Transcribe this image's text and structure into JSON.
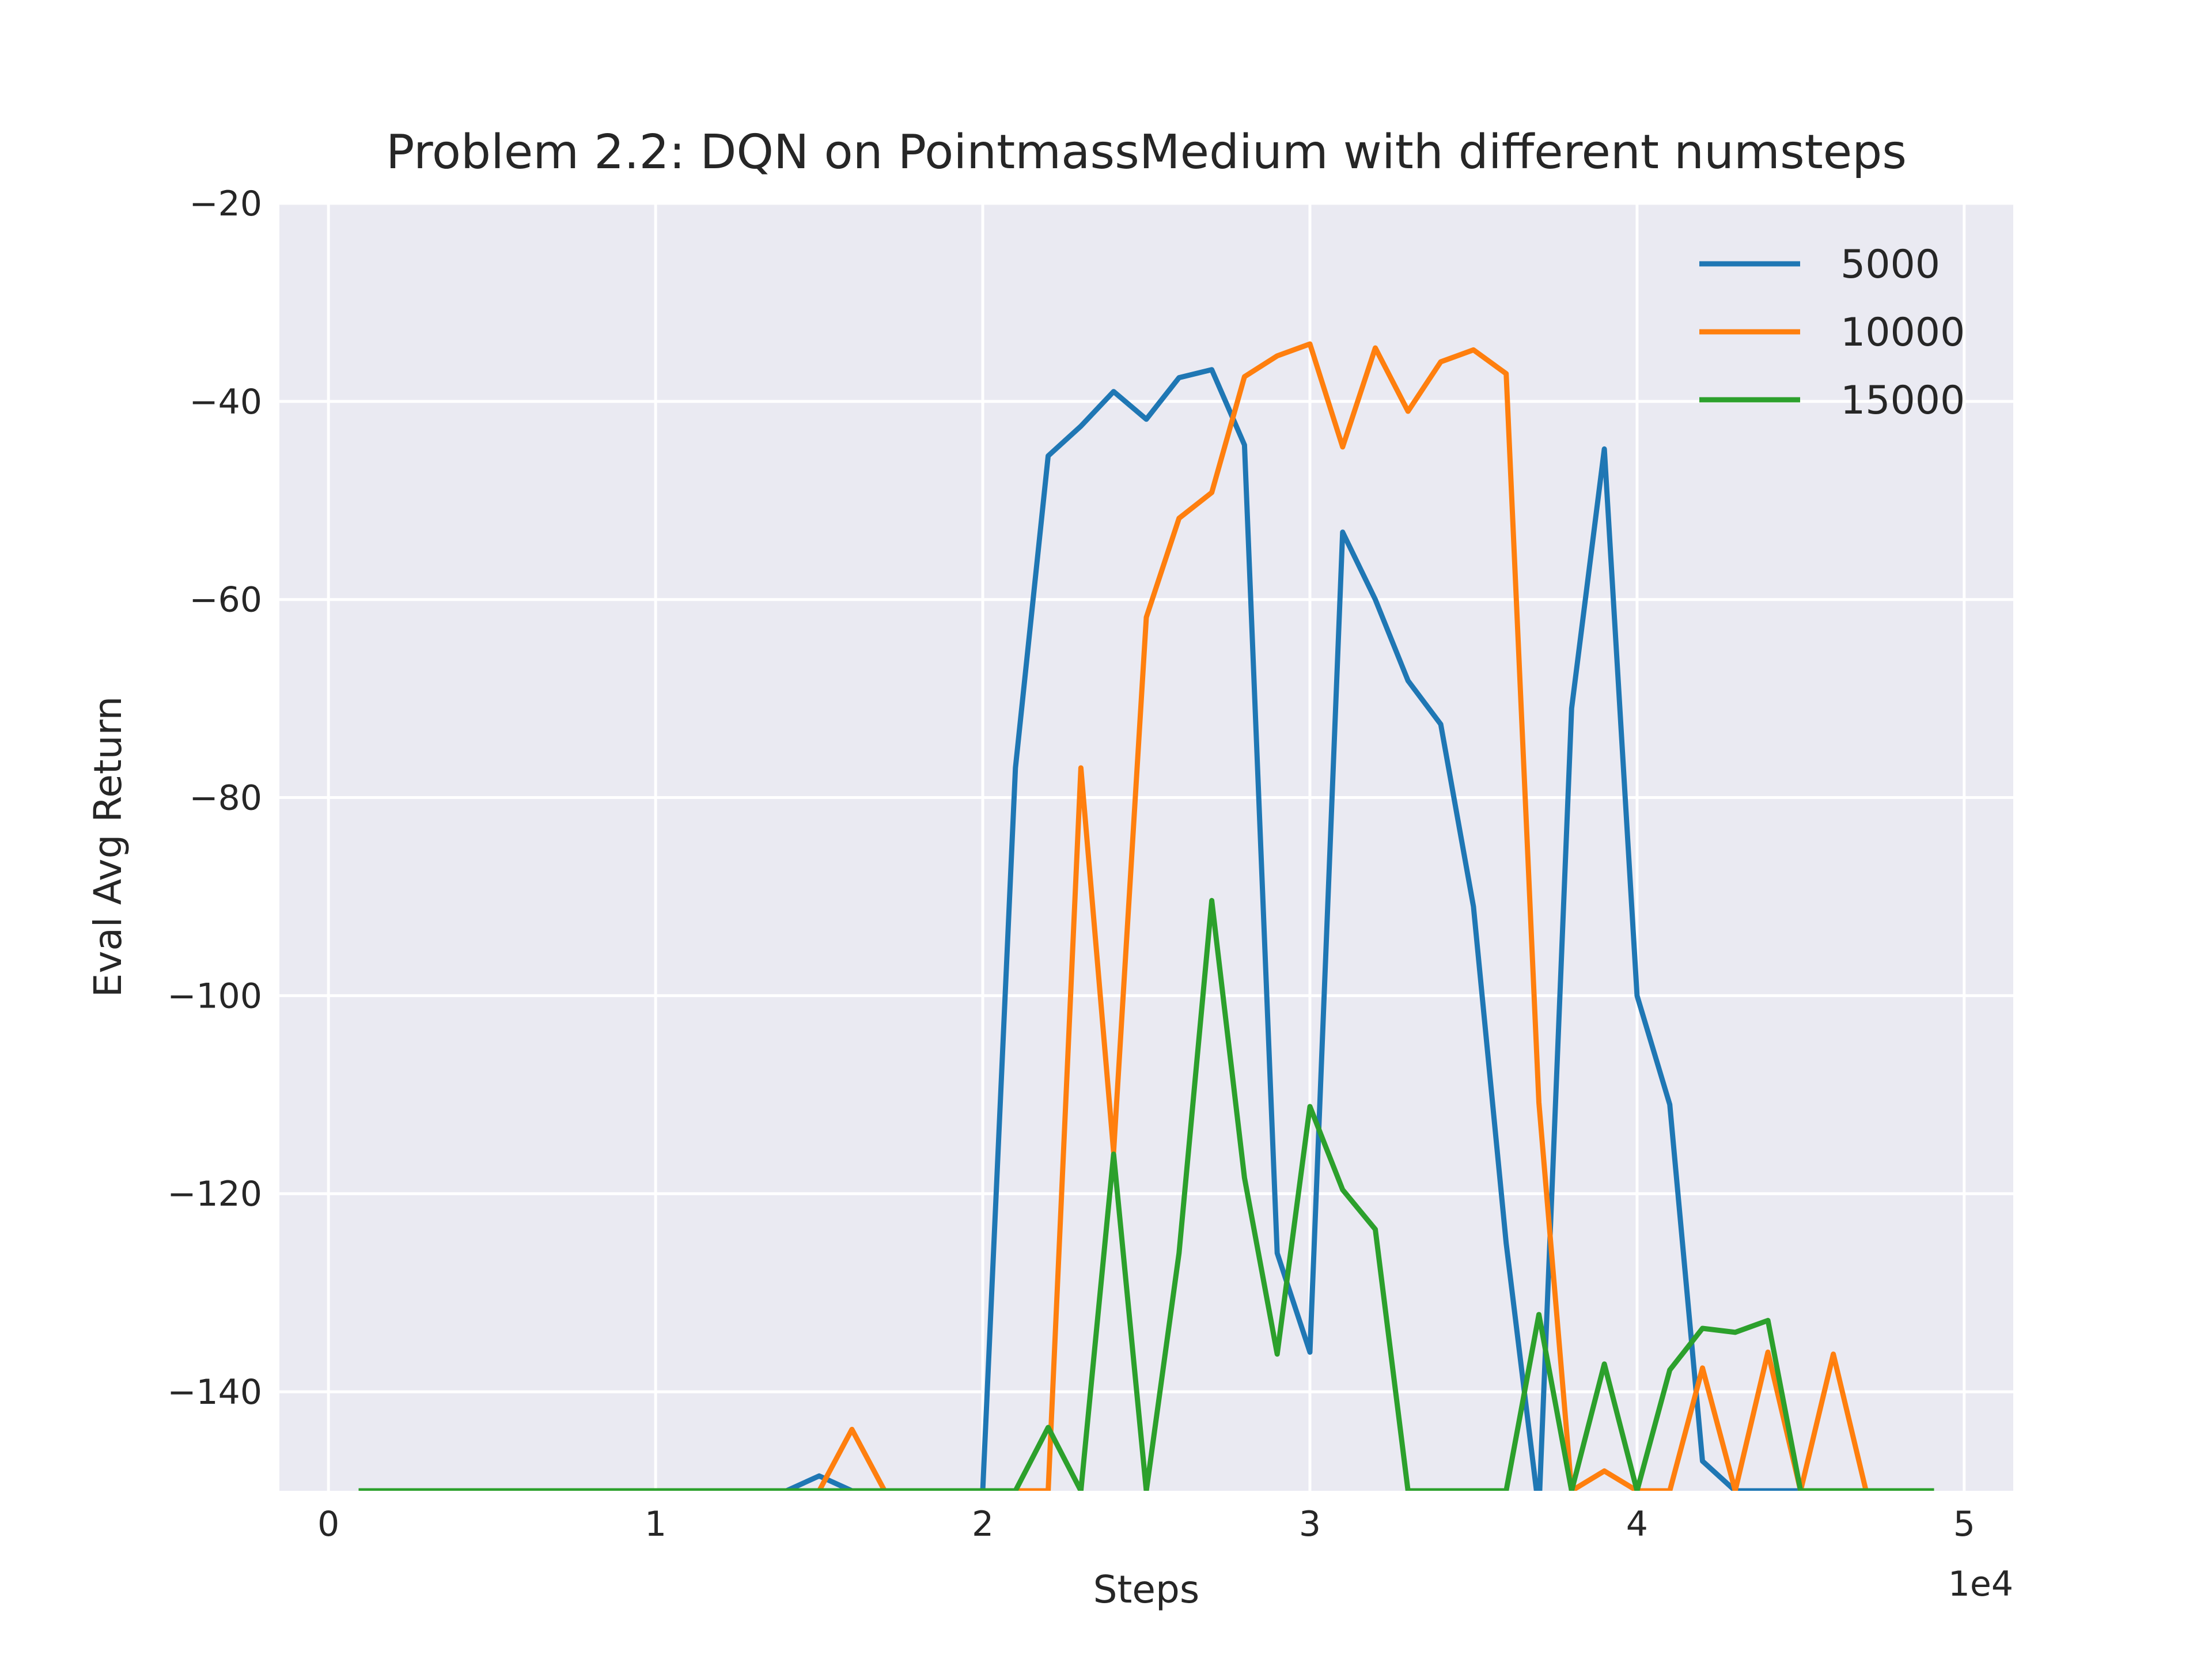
{
  "chart_data": {
    "type": "line",
    "title": "Problem 2.2: DQN on PointmassMedium with different numsteps",
    "xlabel": "Steps",
    "ylabel": "Eval Avg Return",
    "x_offset_label": "1e4",
    "xlim": [
      -0.15,
      5.15
    ],
    "ylim": [
      -150,
      -20
    ],
    "x_ticks": [
      0,
      1,
      2,
      3,
      4,
      5
    ],
    "x_tick_labels": [
      "0",
      "1",
      "2",
      "3",
      "4",
      "5"
    ],
    "y_ticks": [
      -140,
      -120,
      -100,
      -80,
      -60,
      -40,
      -20
    ],
    "y_tick_labels": [
      "−140",
      "−120",
      "−100",
      "−80",
      "−60",
      "−40",
      "−20"
    ],
    "grid": true,
    "legend_position": "top-right",
    "x": [
      0.1,
      0.2,
      0.3,
      0.4,
      0.5,
      0.6,
      0.7,
      0.8,
      0.9,
      1.0,
      1.1,
      1.2,
      1.3,
      1.4,
      1.5,
      1.6,
      1.7,
      1.8,
      1.9,
      2.0,
      2.1,
      2.2,
      2.3,
      2.4,
      2.5,
      2.6,
      2.7,
      2.8,
      2.9,
      3.0,
      3.1,
      3.2,
      3.3,
      3.4,
      3.5,
      3.6,
      3.7,
      3.8,
      3.9,
      4.0,
      4.1,
      4.2,
      4.3,
      4.4,
      4.5,
      4.6,
      4.7,
      4.8,
      4.9
    ],
    "series": [
      {
        "name": "5000",
        "color": "#1f77b4",
        "values": [
          -150,
          -150,
          -150,
          -150,
          -150,
          -150,
          -150,
          -150,
          -150,
          -150,
          -150,
          -150,
          -150,
          -150,
          -148.5,
          -150,
          -150,
          -150,
          -150,
          -150,
          -77,
          -45.5,
          -42.5,
          -39,
          -41.8,
          -37.6,
          -36.8,
          -44.4,
          -126,
          -136,
          -53.2,
          -60,
          -68.2,
          -72.6,
          -91,
          -125,
          -152,
          -71,
          -44.8,
          -100,
          -111,
          -147,
          -150,
          -150,
          -150,
          -150,
          -150,
          -150,
          -150
        ]
      },
      {
        "name": "10000",
        "color": "#ff7f0e",
        "values": [
          -150,
          -150,
          -150,
          -150,
          -150,
          -150,
          -150,
          -150,
          -150,
          -150,
          -150,
          -150,
          -150,
          -150,
          -150,
          -143.8,
          -150,
          -150,
          -150,
          -150,
          -150,
          -150,
          -77,
          -115.8,
          -61.8,
          -51.8,
          -49.2,
          -37.5,
          -35.4,
          -34.2,
          -44.6,
          -34.6,
          -41,
          -36,
          -34.8,
          -37.2,
          -110.8,
          -150,
          -148,
          -150,
          -150,
          -137.6,
          -150,
          -136,
          -150,
          -136.2,
          -150,
          -150,
          -150
        ]
      },
      {
        "name": "15000",
        "color": "#2ca02c",
        "values": [
          -150,
          -150,
          -150,
          -150,
          -150,
          -150,
          -150,
          -150,
          -150,
          -150,
          -150,
          -150,
          -150,
          -150,
          -150,
          -150,
          -150,
          -150,
          -150,
          -150,
          -150,
          -143.6,
          -150,
          -116,
          -150,
          -126,
          -90.4,
          -118.4,
          -136.2,
          -111.2,
          -119.6,
          -123.6,
          -150,
          -150,
          -150,
          -150,
          -132.2,
          -150,
          -137.2,
          -150,
          -137.8,
          -133.6,
          -134,
          -132.8,
          -150,
          -150,
          -150,
          -150,
          -150
        ]
      }
    ]
  }
}
